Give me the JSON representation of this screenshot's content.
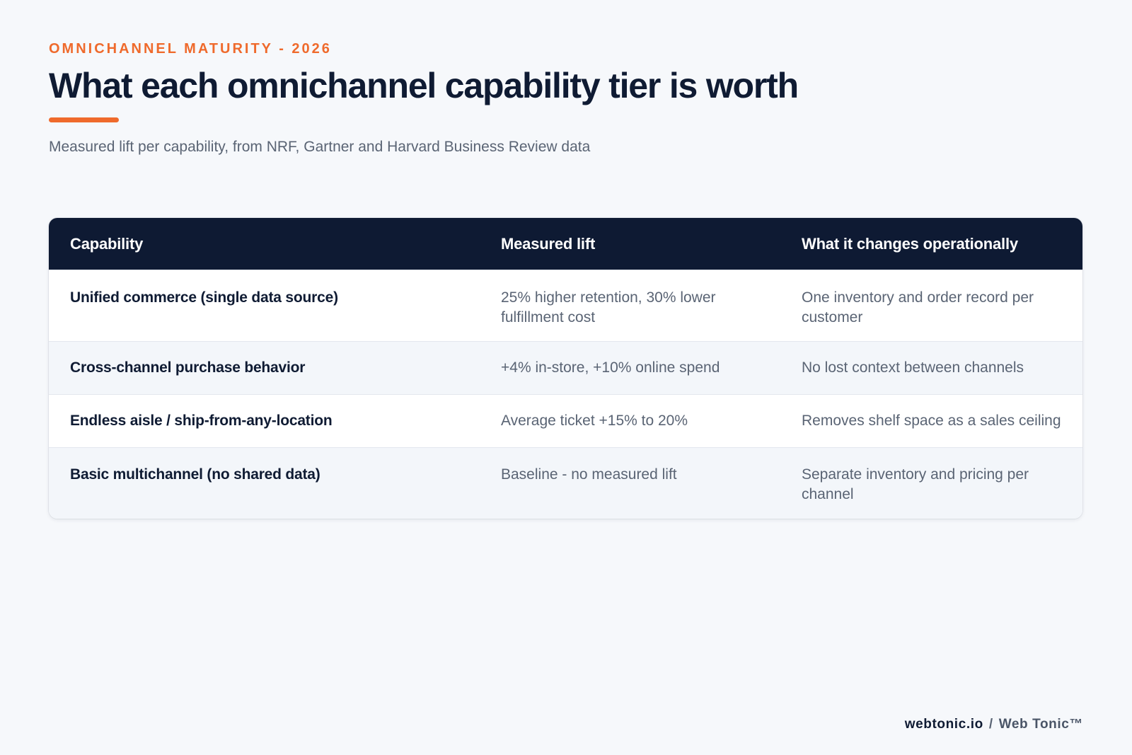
{
  "header": {
    "eyebrow": "OMNICHANNEL MATURITY - 2026",
    "title": "What each omnichannel capability tier is worth",
    "subtitle": "Measured lift per capability, from NRF, Gartner and Harvard Business Review data",
    "accent_color": "#ef6a2c"
  },
  "table": {
    "header_color": "#0e1a33",
    "columns": [
      "Capability",
      "Measured lift",
      "What it changes operationally"
    ],
    "rows": [
      {
        "capability": "Unified commerce (single data source)",
        "lift": "25% higher retention, 30% lower fulfillment cost",
        "operational": "One inventory and order record per customer"
      },
      {
        "capability": "Cross-channel purchase behavior",
        "lift": "+4% in-store, +10% online spend",
        "operational": "No lost context between channels"
      },
      {
        "capability": "Endless aisle / ship-from-any-location",
        "lift": "Average ticket +15% to 20%",
        "operational": "Removes shelf space as a sales ceiling"
      },
      {
        "capability": "Basic multichannel (no shared data)",
        "lift": "Baseline - no measured lift",
        "operational": "Separate inventory and pricing per channel"
      }
    ]
  },
  "footer": {
    "domain": "webtonic.io",
    "separator": "/",
    "brand": "Web Tonic™"
  }
}
